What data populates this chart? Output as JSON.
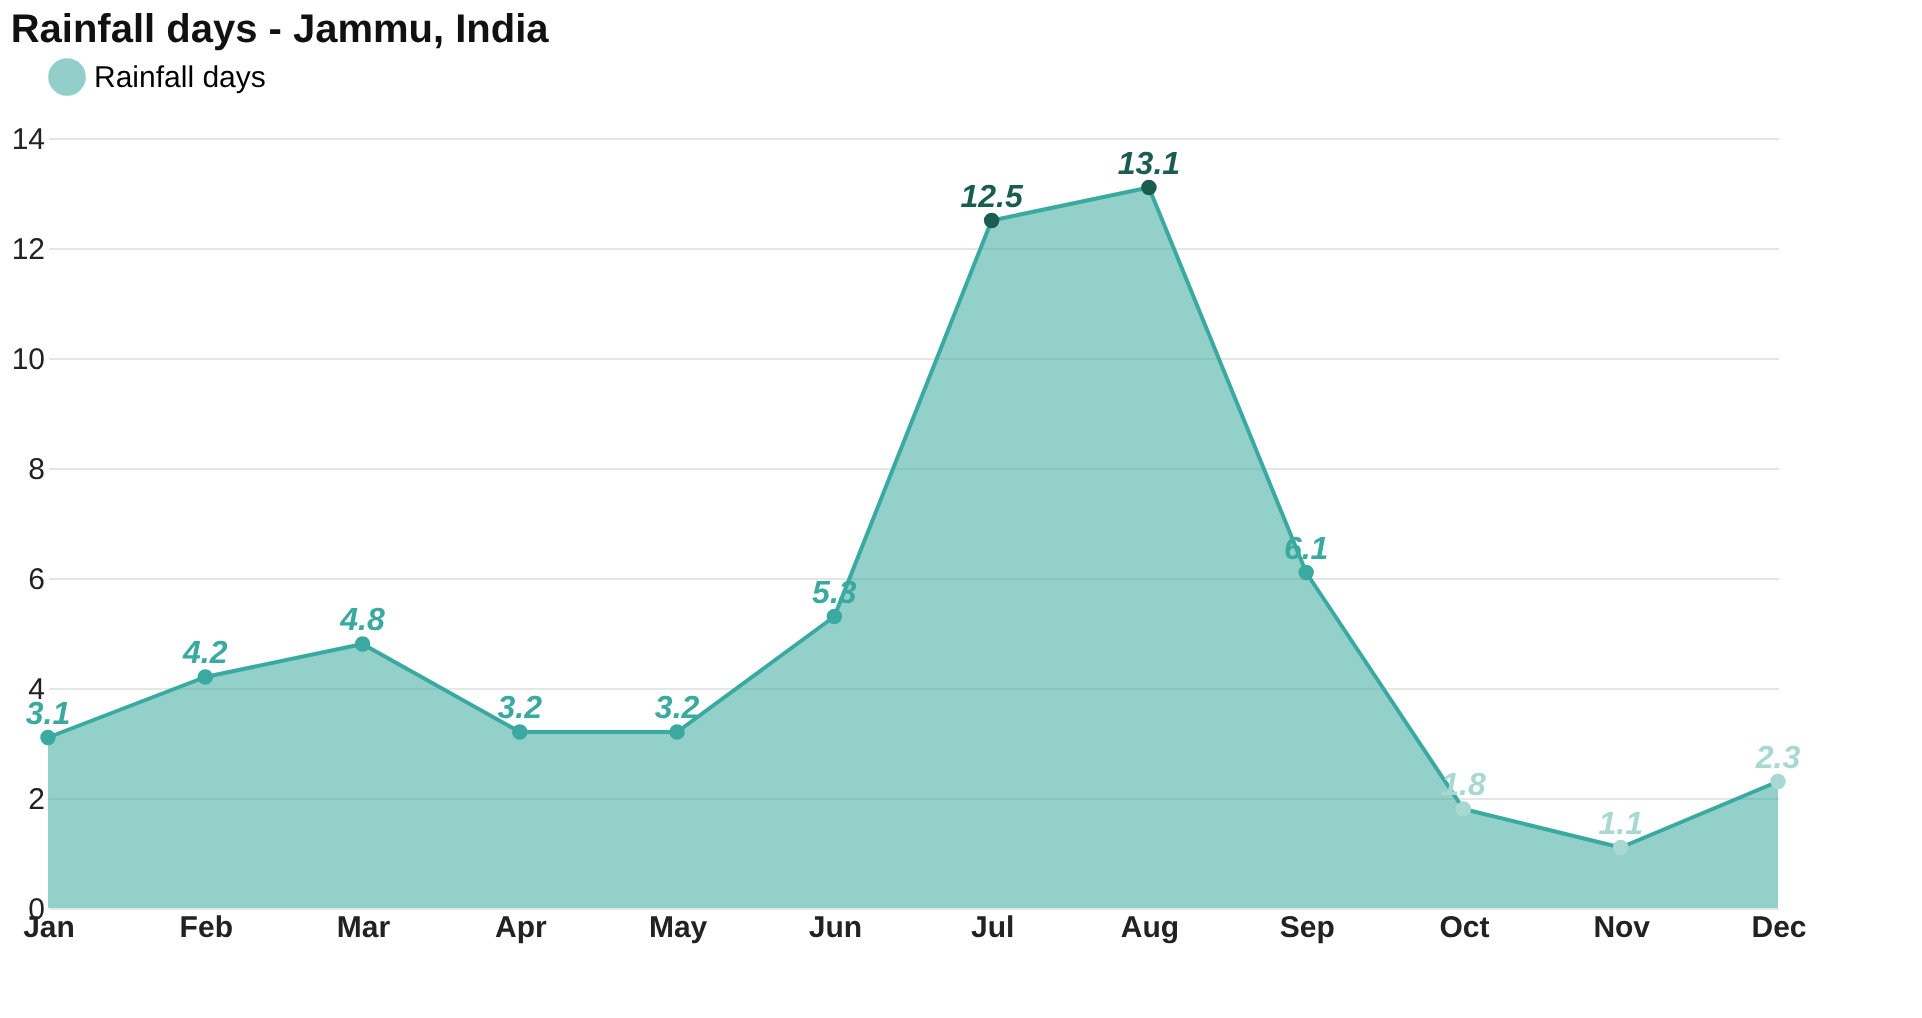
{
  "chart_data": {
    "type": "area",
    "title": "Rainfall days - Jammu, India",
    "categories": [
      "Jan",
      "Feb",
      "Mar",
      "Apr",
      "May",
      "Jun",
      "Jul",
      "Aug",
      "Sep",
      "Oct",
      "Nov",
      "Dec"
    ],
    "series": [
      {
        "name": "Rainfall days",
        "color": "#3aa99f",
        "values": [
          3.1,
          4.2,
          4.8,
          3.2,
          3.2,
          5.3,
          12.5,
          13.1,
          6.1,
          1.8,
          1.1,
          2.3
        ],
        "colors": [
          "#3aa99f",
          "#3aa99f",
          "#3aa99f",
          "#3aa99f",
          "#3aa99f",
          "#3aa99f",
          "#1a5c50",
          "#1a5c50",
          "#3aa99f",
          "#a8d8d2",
          "#a8d8d2",
          "#a8d8d2"
        ]
      }
    ],
    "ylim": [
      0,
      14
    ],
    "yticks": [
      0,
      2,
      4,
      6,
      8,
      10,
      12,
      14
    ],
    "grid": "y",
    "legend": "top left",
    "marker": "circle",
    "data_labels": true
  }
}
